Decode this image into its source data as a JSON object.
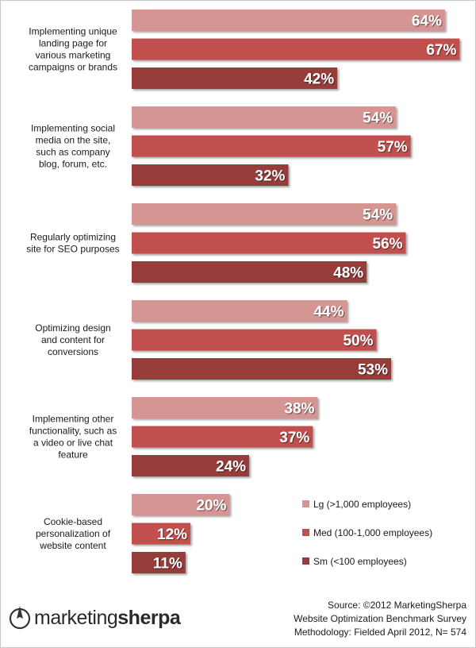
{
  "chart_data": {
    "type": "bar",
    "orientation": "horizontal",
    "categories": [
      [
        "Implementing unique",
        "landing page for",
        "various marketing",
        "campaigns or brands"
      ],
      [
        "Implementing social",
        "media on the site,",
        "such as company",
        "blog, forum, etc."
      ],
      [
        "Regularly optimizing",
        "site for SEO purposes"
      ],
      [
        "Optimizing design",
        "and content for",
        "conversions"
      ],
      [
        "Implementing other",
        "functionality, such as",
        "a video or live chat",
        "feature"
      ],
      [
        "Cookie-based",
        "personalization of",
        "website content"
      ]
    ],
    "series": [
      {
        "name": "Lg (>1,000 employees)",
        "color": "#d49593",
        "values": [
          64,
          54,
          54,
          44,
          38,
          20
        ]
      },
      {
        "name": "Med (100-1,000 employees)",
        "color": "#c0504d",
        "values": [
          67,
          57,
          56,
          50,
          37,
          12
        ]
      },
      {
        "name": "Sm (<100 employees)",
        "color": "#963c3a",
        "values": [
          42,
          32,
          48,
          53,
          24,
          11
        ]
      }
    ],
    "value_suffix": "%",
    "xlim": [
      0,
      70
    ],
    "grid": false,
    "axis_visible": false,
    "legend_position": "lower-right"
  },
  "source": {
    "line1": "Source: ©2012 MarketingSherpa",
    "line2": "Website Optimization Benchmark Survey",
    "line3": "Methodology: Fielded April 2012, N= 574"
  },
  "logo": {
    "part1": "marketing",
    "part2": "sherpa"
  }
}
